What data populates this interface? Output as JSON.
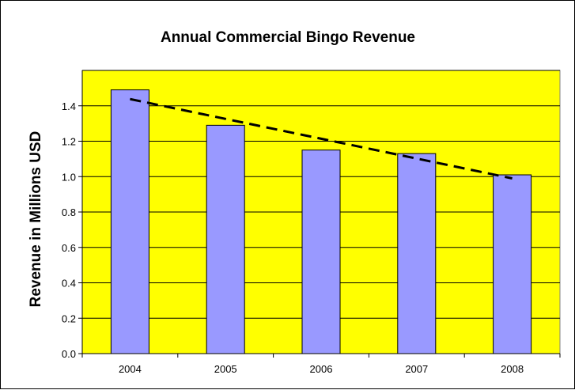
{
  "chart_data": {
    "type": "bar",
    "title": "Annual Commercial Bingo Revenue",
    "xlabel": "",
    "ylabel": "Revenue in Millions USD",
    "categories": [
      "2004",
      "2005",
      "2006",
      "2007",
      "2008"
    ],
    "values": [
      1.49,
      1.29,
      1.15,
      1.13,
      1.01
    ],
    "ylim": [
      0,
      1.6
    ],
    "yticks": [
      "0.0",
      "0.2",
      "0.4",
      "0.6",
      "0.8",
      "1.0",
      "1.2",
      "1.4"
    ],
    "trendline": {
      "type": "linear",
      "style": "dashed",
      "color": "#000000"
    },
    "grid": true,
    "legend": "none",
    "colors": {
      "plot_background": "#ffff00",
      "bar_fill": "#9999ff",
      "bar_stroke": "#000000"
    }
  }
}
